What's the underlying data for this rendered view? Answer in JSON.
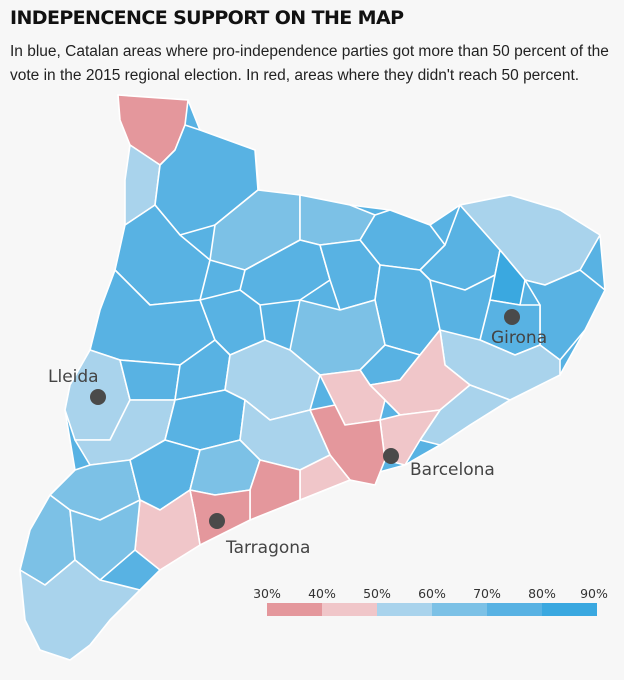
{
  "header": {
    "title": "INDEPENCENCE SUPPORT ON THE MAP",
    "subtitle": "In blue, Catalan areas where pro-independence parties got more than 50 percent of the vote in the 2015 regional election. In red, areas where they didn't reach 50 percent."
  },
  "colors": {
    "bin_30_40": "#e4979c",
    "bin_40_50": "#f0c6c9",
    "bin_50_60": "#a9d3ec",
    "bin_60_70": "#7cc1e6",
    "bin_70_80": "#58b2e3",
    "bin_80_90": "#3aa8e0",
    "city_marker": "#4a4a4a"
  },
  "cities": [
    {
      "name": "Girona"
    },
    {
      "name": "Lleida"
    },
    {
      "name": "Barcelona"
    },
    {
      "name": "Tarragona"
    }
  ],
  "legend": {
    "ticks": [
      "30%",
      "40%",
      "50%",
      "60%",
      "70%",
      "80%",
      "90%"
    ]
  }
}
